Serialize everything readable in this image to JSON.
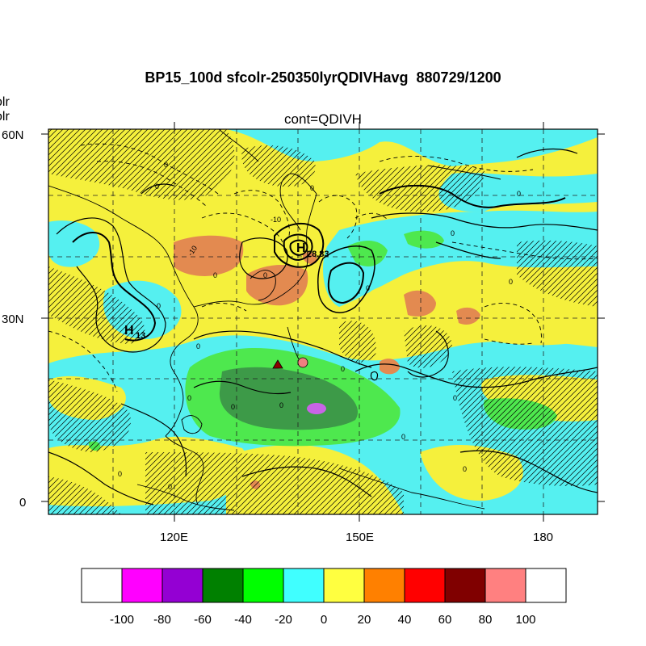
{
  "title": "BP15_100d sfcolr-250350lyrQDIVHavg  880729/1200",
  "subtitle": "cont=QDIVH",
  "left_cut_labels": [
    "olr",
    "olr"
  ],
  "axes": {
    "lat_ticks": [
      "60N",
      "30N",
      "0"
    ],
    "lon_ticks": [
      "120E",
      "150E",
      "180"
    ]
  },
  "highs": [
    {
      "letter": "H",
      "value": "28.83"
    },
    {
      "letter": "H",
      "value": "13"
    }
  ],
  "contour_labels": [
    "0",
    "0",
    "0",
    "0",
    "0",
    "0",
    "0",
    "0",
    "0",
    "0",
    "0",
    "0",
    "0",
    "0",
    "-10",
    "-10"
  ],
  "markers": [
    {
      "name": "triangle-marker",
      "color": "#8b0000"
    },
    {
      "name": "circle-marker",
      "color": "#f08080"
    }
  ],
  "colorbar": {
    "colors": [
      "#ffffff",
      "#ff00ff",
      "#9400d3",
      "#008000",
      "#00ff00",
      "#40ffff",
      "#ffff40",
      "#ff8000",
      "#ff0000",
      "#800000",
      "#ff8080",
      "#ffffff"
    ],
    "labels": [
      "-100",
      "-80",
      "-60",
      "-40",
      "-20",
      "0",
      "20",
      "40",
      "60",
      "80",
      "100"
    ]
  },
  "palette": {
    "yellow": "#f5f03c",
    "cyan": "#55f0f0",
    "orange": "#e38a50",
    "green": "#4ee84e",
    "darkgreen": "#3d9a48",
    "magenta": "#c864e6"
  }
}
